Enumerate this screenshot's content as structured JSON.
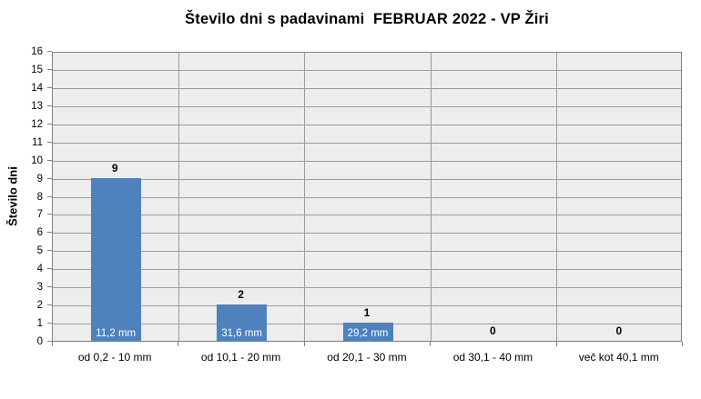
{
  "chart_data": {
    "type": "bar",
    "title": "Število dni s padavinami  FEBRUAR 2022 - VP Žiri",
    "ylabel": "Število dni",
    "xlabel": "",
    "categories": [
      "od 0,2 - 10 mm",
      "od 10,1 - 20 mm",
      "od 20,1 - 30 mm",
      "od 30,1 - 40 mm",
      "več kot 40,1 mm"
    ],
    "values": [
      9,
      2,
      1,
      0,
      0
    ],
    "value_labels": [
      "9",
      "2",
      "1",
      "0",
      "0"
    ],
    "inside_bar_labels": [
      "11,2 mm",
      "31,6 mm",
      "29,2 mm",
      "",
      ""
    ],
    "ylim": [
      0,
      16
    ],
    "ytick_step": 1,
    "grid": true,
    "legend": "none",
    "colors": {
      "bar": "#4F81BD",
      "plot_background": "#EDEDED",
      "gridline": "#9C9C9C",
      "axis": "#808080",
      "inside_label_text": "#FFFFFF",
      "text": "#000000"
    }
  }
}
